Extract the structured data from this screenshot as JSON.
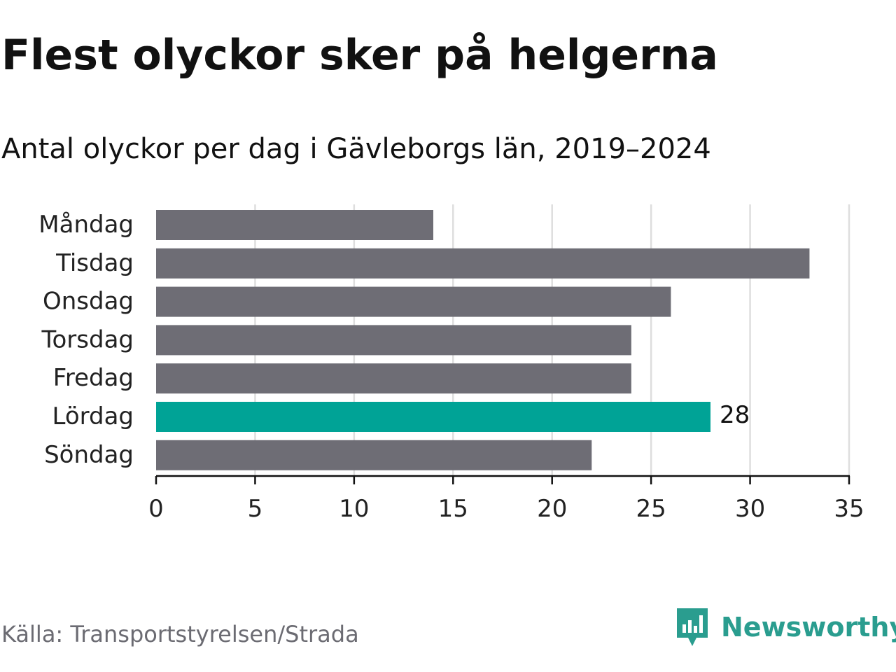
{
  "chart_data": {
    "type": "bar",
    "orientation": "horizontal",
    "title": "Flest olyckor sker på helgerna",
    "subtitle": "Antal olyckor per dag i Gävleborgs län, 2019–2024",
    "categories": [
      "Måndag",
      "Tisdag",
      "Onsdag",
      "Torsdag",
      "Fredag",
      "Lördag",
      "Söndag"
    ],
    "values": [
      14,
      33,
      26,
      24,
      24,
      28,
      22
    ],
    "highlight": {
      "category": "Lördag",
      "value": 28,
      "label": "28"
    },
    "xlim": [
      0,
      35
    ],
    "xticks": [
      0,
      5,
      10,
      15,
      20,
      25,
      30,
      35
    ],
    "grid": "vertical",
    "colors": {
      "bar": "#6e6d75",
      "highlight": "#00a396",
      "grid": "#dedede",
      "axis": "#111111"
    }
  },
  "source": "Källa: Transportstyrelsen/Strada",
  "brand": {
    "name": "Newsworthy",
    "icon": "newsworthy-logo-icon",
    "color": "#2a9d8f"
  }
}
